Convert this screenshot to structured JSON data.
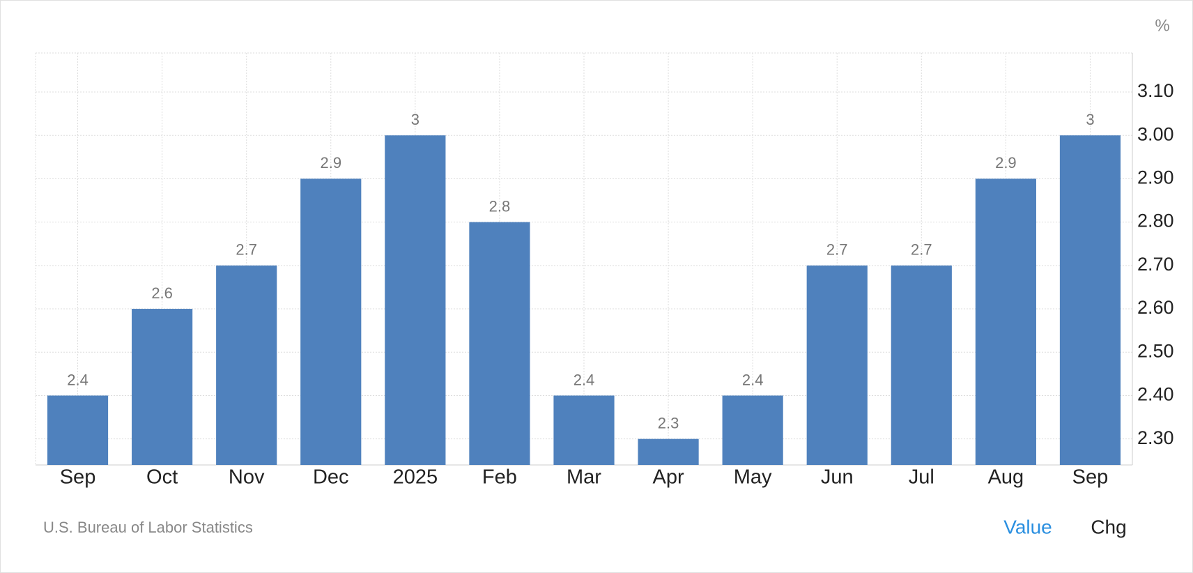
{
  "chart_data": {
    "type": "bar",
    "unit": "%",
    "categories": [
      "Sep",
      "Oct",
      "Nov",
      "Dec",
      "2025",
      "Feb",
      "Mar",
      "Apr",
      "May",
      "Jun",
      "Jul",
      "Aug",
      "Sep"
    ],
    "values": [
      2.4,
      2.6,
      2.7,
      2.9,
      3,
      2.8,
      2.4,
      2.3,
      2.4,
      2.7,
      2.7,
      2.9,
      3
    ],
    "color": "#4f81bd",
    "ylim": [
      2.24,
      3.19
    ],
    "yticks": [
      {
        "value": 2.3,
        "label": "2.30"
      },
      {
        "value": 2.4,
        "label": "2.40"
      },
      {
        "value": 2.5,
        "label": "2.50"
      },
      {
        "value": 2.6,
        "label": "2.60"
      },
      {
        "value": 2.7,
        "label": "2.70"
      },
      {
        "value": 2.8,
        "label": "2.80"
      },
      {
        "value": 2.9,
        "label": "2.90"
      },
      {
        "value": 3.0,
        "label": "3.00"
      },
      {
        "value": 3.1,
        "label": "3.10"
      }
    ],
    "grid": true,
    "source": "U.S. Bureau of Labor Statistics",
    "controls": [
      "Value",
      "Chg"
    ]
  }
}
